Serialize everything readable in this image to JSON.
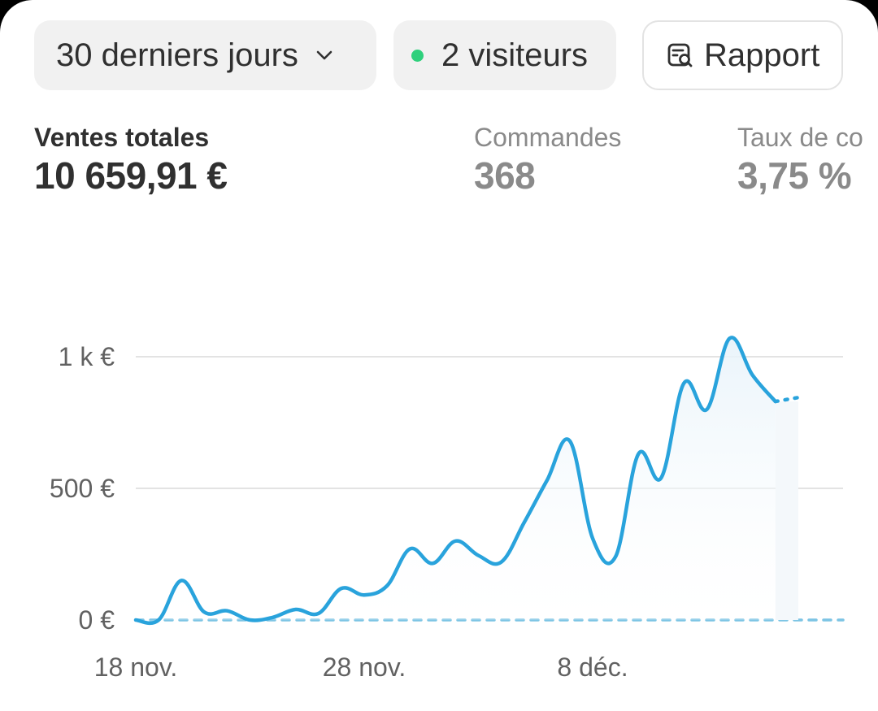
{
  "toolbar": {
    "range_label": "30 derniers jours",
    "visitors_label": "2 visiteurs",
    "report_label": "Rapport",
    "live_dot_color": "#2fd07c"
  },
  "metrics": [
    {
      "label": "Ventes totales",
      "value": "10 659,91 €"
    },
    {
      "label": "Commandes",
      "value": "368"
    },
    {
      "label": "Taux de co",
      "value": "3,75 %"
    }
  ],
  "colors": {
    "line": "#29a3dc",
    "comparison": "#7cc4e4",
    "grid": "#e3e3e3"
  },
  "chart_data": {
    "type": "line",
    "x_tick_labels": [
      "18 nov.",
      "28 nov.",
      "8 déc."
    ],
    "y_tick_labels": [
      "1 k €",
      "500 €",
      "0 €"
    ],
    "y_ticks": [
      1000,
      500,
      0
    ],
    "ylim": [
      0,
      1000
    ],
    "grid": true,
    "x": [
      "18 nov.",
      "19 nov.",
      "20 nov.",
      "21 nov.",
      "22 nov.",
      "23 nov.",
      "24 nov.",
      "25 nov.",
      "26 nov.",
      "27 nov.",
      "28 nov.",
      "29 nov.",
      "30 nov.",
      "1 déc.",
      "2 déc.",
      "3 déc.",
      "4 déc.",
      "5 déc.",
      "6 déc.",
      "7 déc.",
      "8 déc.",
      "9 déc.",
      "10 déc.",
      "11 déc.",
      "12 déc.",
      "13 déc.",
      "14 déc.",
      "15 déc.",
      "16 déc.",
      "17 déc.",
      "18 déc."
    ],
    "series": [
      {
        "values": [
          0,
          0,
          150,
          30,
          35,
          0,
          10,
          40,
          25,
          120,
          95,
          130,
          270,
          215,
          300,
          245,
          220,
          370,
          530,
          680,
          310,
          240,
          630,
          540,
          900,
          800,
          1070,
          930,
          830,
          null,
          null
        ]
      },
      {
        "values": [
          null,
          null,
          null,
          null,
          null,
          null,
          null,
          null,
          null,
          null,
          null,
          null,
          null,
          null,
          null,
          null,
          null,
          null,
          null,
          null,
          null,
          null,
          null,
          null,
          null,
          null,
          null,
          null,
          830,
          845,
          null
        ]
      },
      {
        "values": [
          0,
          0,
          0,
          0,
          0,
          0,
          0,
          0,
          0,
          0,
          0,
          0,
          0,
          0,
          0,
          0,
          0,
          0,
          0,
          0,
          0,
          0,
          0,
          0,
          0,
          0,
          0,
          0,
          0,
          0,
          0
        ]
      }
    ]
  }
}
